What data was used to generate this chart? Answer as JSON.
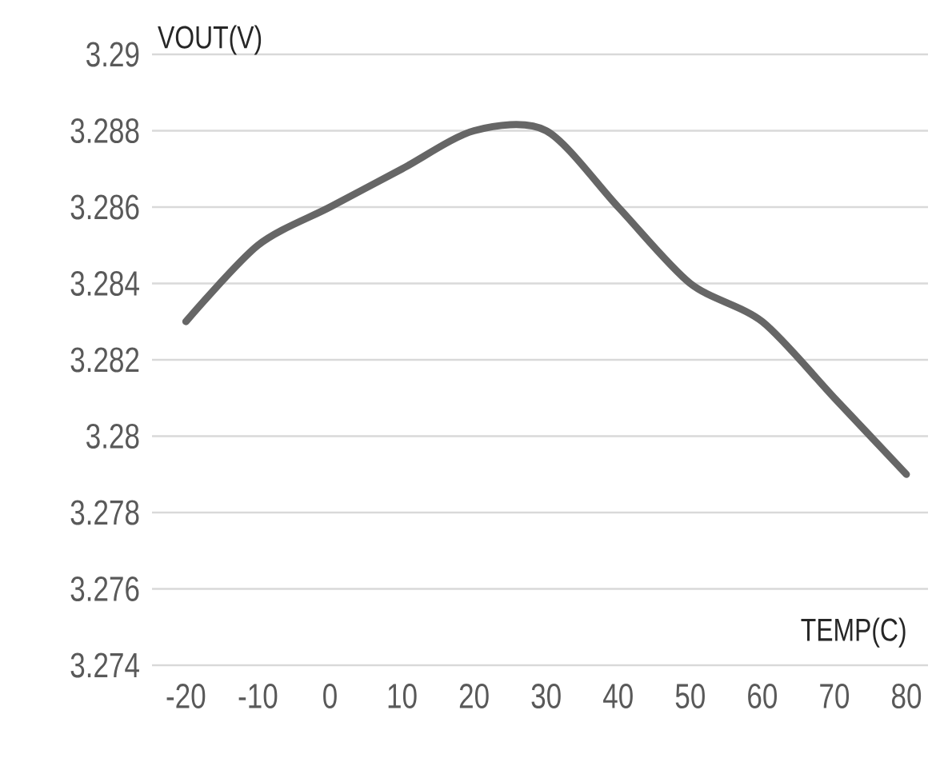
{
  "chart_data": {
    "type": "line",
    "xlabel": "TEMP(C)",
    "ylabel": "VOUT(V)",
    "categories": [
      "-20",
      "-10",
      "0",
      "10",
      "20",
      "30",
      "40",
      "50",
      "60",
      "70",
      "80"
    ],
    "values": [
      3.283,
      3.285,
      3.286,
      3.287,
      3.288,
      3.288,
      3.286,
      3.284,
      3.283,
      3.281,
      3.279
    ],
    "color": "#666666",
    "ylim": [
      3.274,
      3.29
    ],
    "yticks": [
      3.274,
      3.276,
      3.278,
      3.28,
      3.282,
      3.284,
      3.286,
      3.288,
      3.29
    ],
    "grid": "y"
  }
}
